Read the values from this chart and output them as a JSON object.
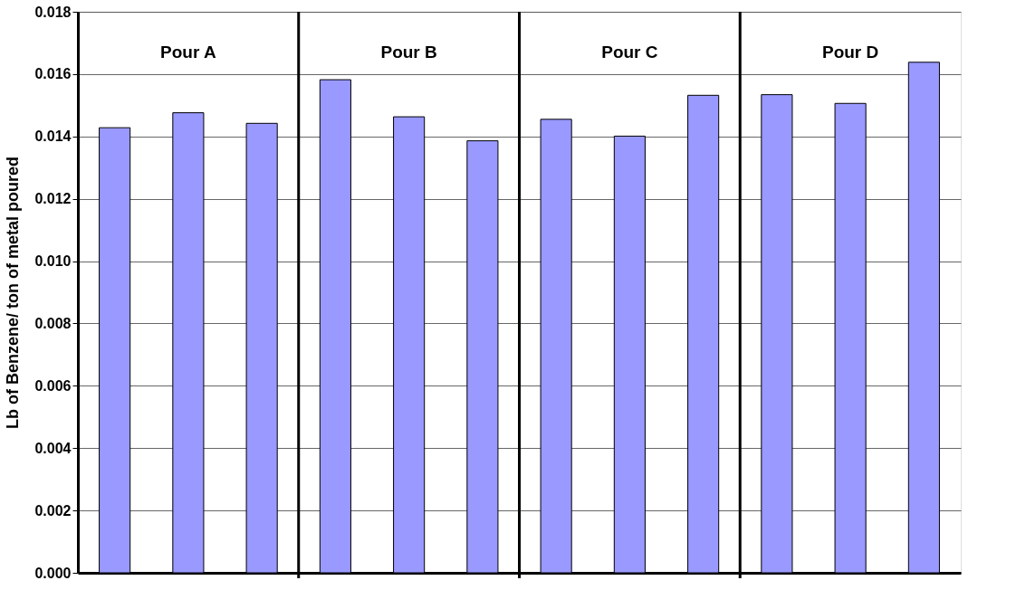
{
  "chart_data": {
    "type": "bar",
    "ylabel": "Lb of Benzene/ ton of metal poured",
    "categories": [
      null,
      null,
      null,
      null,
      null,
      null,
      null,
      null,
      null,
      null,
      null,
      null
    ],
    "values": [
      0.01428,
      0.01476,
      0.01442,
      0.01582,
      0.01463,
      0.01386,
      0.01455,
      0.01401,
      0.01532,
      0.01534,
      0.01506,
      0.01638
    ],
    "color": "#9999ff",
    "ylim": [
      0,
      0.018
    ],
    "yticks": [
      {
        "value": 0,
        "label": "0.000"
      },
      {
        "value": 0.002,
        "label": "0.002"
      },
      {
        "value": 0.004,
        "label": "0.004"
      },
      {
        "value": 0.006,
        "label": "0.006"
      },
      {
        "value": 0.008,
        "label": "0.008"
      },
      {
        "value": 0.01,
        "label": "0.010"
      },
      {
        "value": 0.012,
        "label": "0.012"
      },
      {
        "value": 0.014,
        "label": "0.014"
      },
      {
        "value": 0.016,
        "label": "0.016"
      },
      {
        "value": 0.018,
        "label": "0.018"
      }
    ],
    "grid": "y",
    "annotations": [
      "Pour A",
      "Pour B",
      "Pour C",
      "Pour D"
    ]
  }
}
